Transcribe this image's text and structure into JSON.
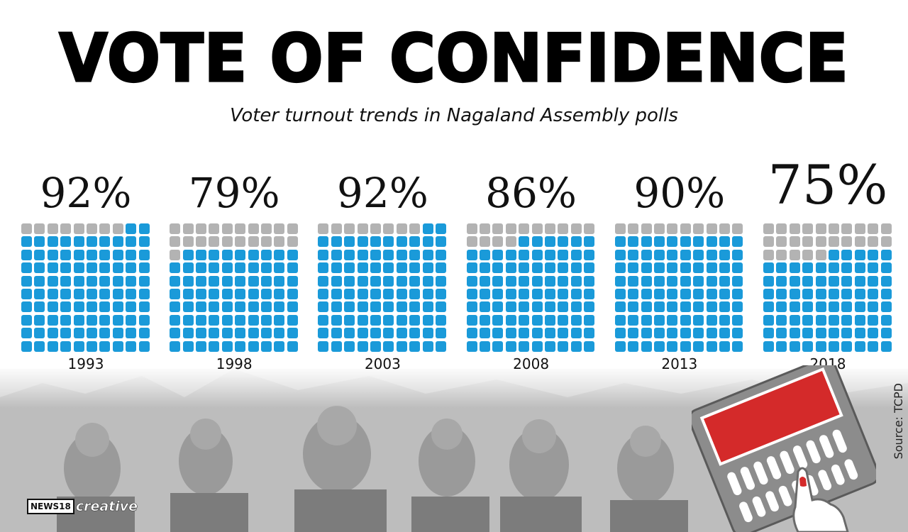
{
  "header": {
    "title": "VOTE OF CONFIDENCE",
    "subtitle": "Voter turnout trends in Nagaland Assembly polls"
  },
  "footer": {
    "source": "Source: TCPD",
    "logo_mark": "NEWS18",
    "logo_word": "creative"
  },
  "colors": {
    "filled": "#1a9ad9",
    "empty": "#b3b3b3",
    "evm_screen": "#d42a2a",
    "evm_body": "#8c8c8c"
  },
  "chart_data": {
    "type": "waffle",
    "unit": "%",
    "total_cells": 100,
    "categories": [
      "1993",
      "1998",
      "2003",
      "2008",
      "2013",
      "2018"
    ],
    "values": [
      92,
      79,
      92,
      86,
      90,
      75
    ],
    "labels": [
      "92%",
      "79%",
      "92%",
      "86%",
      "90%",
      "75%"
    ],
    "highlight": "2018"
  }
}
